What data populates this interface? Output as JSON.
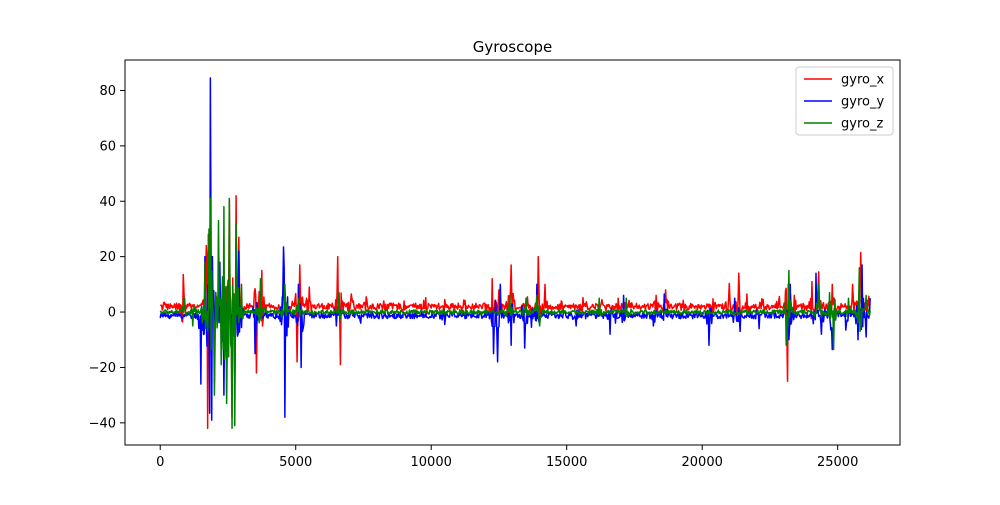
{
  "chart_data": {
    "type": "line",
    "title": "Gyroscope",
    "xlabel": "",
    "ylabel": "",
    "xlim": [
      -1300,
      27300
    ],
    "ylim": [
      -48,
      91
    ],
    "xticks": [
      0,
      5000,
      10000,
      15000,
      20000,
      25000
    ],
    "xtick_labels": [
      "0",
      "5000",
      "10000",
      "15000",
      "20000",
      "25000"
    ],
    "yticks": [
      -40,
      -20,
      0,
      20,
      40,
      60,
      80
    ],
    "ytick_labels": [
      "−40",
      "−20",
      "0",
      "20",
      "40",
      "60",
      "80"
    ],
    "grid": false,
    "legend_position": "top-right",
    "x_range": [
      0,
      26200
    ],
    "series": [
      {
        "name": "gyro_x",
        "color": "#ff0000",
        "baseline": 2,
        "noise": 1.2,
        "peaks": [
          [
            150,
            3.5
          ],
          [
            850,
            13.5
          ],
          [
            1700,
            24
          ],
          [
            1780,
            28
          ],
          [
            1760,
            -42
          ],
          [
            2000,
            -25
          ],
          [
            2350,
            -20
          ],
          [
            2550,
            40
          ],
          [
            2800,
            42
          ],
          [
            2650,
            -38
          ],
          [
            2900,
            27
          ],
          [
            3750,
            15
          ],
          [
            3550,
            -22
          ],
          [
            4550,
            10
          ],
          [
            5150,
            17
          ],
          [
            5050,
            -18
          ],
          [
            5500,
            9
          ],
          [
            6550,
            20
          ],
          [
            6650,
            -19
          ],
          [
            7050,
            6.5
          ],
          [
            7600,
            5.5
          ],
          [
            8250,
            4
          ],
          [
            9000,
            4
          ],
          [
            9800,
            5.2
          ],
          [
            10500,
            4.5
          ],
          [
            11200,
            4.3
          ],
          [
            12250,
            12
          ],
          [
            12500,
            8
          ],
          [
            12950,
            17
          ],
          [
            13550,
            5.5
          ],
          [
            13950,
            20
          ],
          [
            14200,
            10
          ],
          [
            14800,
            4
          ],
          [
            15600,
            5.2
          ],
          [
            16300,
            4.5
          ],
          [
            16900,
            5
          ],
          [
            17300,
            4.2
          ],
          [
            18300,
            6
          ],
          [
            18650,
            8
          ],
          [
            19300,
            4.2
          ],
          [
            20400,
            4.8
          ],
          [
            21000,
            10.3
          ],
          [
            21350,
            14
          ],
          [
            21650,
            6.5
          ],
          [
            22200,
            4.8
          ],
          [
            22850,
            5.6
          ],
          [
            23150,
            16.5
          ],
          [
            23160,
            -25
          ],
          [
            23400,
            6
          ],
          [
            24050,
            11
          ],
          [
            24300,
            14.5
          ],
          [
            24800,
            10
          ],
          [
            25550,
            10
          ],
          [
            25850,
            21.5
          ],
          [
            26150,
            5.7
          ]
        ]
      },
      {
        "name": "gyro_y",
        "color": "#0000ff",
        "baseline": -1.2,
        "noise": 1.2,
        "peaks": [
          [
            1500,
            -26
          ],
          [
            1650,
            20
          ],
          [
            1850,
            84.5
          ],
          [
            1900,
            -39
          ],
          [
            2200,
            18
          ],
          [
            2350,
            -30
          ],
          [
            2750,
            -25
          ],
          [
            2900,
            22
          ],
          [
            3500,
            -15
          ],
          [
            4550,
            23.5
          ],
          [
            4600,
            -38
          ],
          [
            5100,
            10
          ],
          [
            5200,
            -20
          ],
          [
            6500,
            -5
          ],
          [
            6600,
            5
          ],
          [
            7400,
            -4
          ],
          [
            10500,
            -4.5
          ],
          [
            12300,
            -15
          ],
          [
            12450,
            -18
          ],
          [
            12550,
            10
          ],
          [
            12950,
            -12
          ],
          [
            13450,
            -13
          ],
          [
            13700,
            -5.5
          ],
          [
            13900,
            10
          ],
          [
            15350,
            -5
          ],
          [
            16600,
            -8
          ],
          [
            16800,
            -4
          ],
          [
            17100,
            6
          ],
          [
            18200,
            -5
          ],
          [
            18600,
            6.5
          ],
          [
            20250,
            -12
          ],
          [
            21200,
            5
          ],
          [
            21400,
            -7
          ],
          [
            22100,
            -6
          ],
          [
            23200,
            -10
          ],
          [
            23250,
            10
          ],
          [
            24200,
            14
          ],
          [
            24400,
            -8
          ],
          [
            24800,
            -13.5
          ],
          [
            25300,
            -6.5
          ],
          [
            25750,
            -10
          ],
          [
            25900,
            17
          ],
          [
            26050,
            -9
          ],
          [
            26200,
            5
          ]
        ]
      },
      {
        "name": "gyro_z",
        "color": "#008000",
        "baseline": 0,
        "noise": 0.8,
        "peaks": [
          [
            900,
            5
          ],
          [
            1200,
            -5
          ],
          [
            1650,
            18
          ],
          [
            1800,
            30
          ],
          [
            1850,
            41
          ],
          [
            2000,
            -30
          ],
          [
            2150,
            33
          ],
          [
            2250,
            -19
          ],
          [
            2350,
            38
          ],
          [
            2450,
            -33
          ],
          [
            2550,
            41
          ],
          [
            2650,
            -42
          ],
          [
            2800,
            32
          ],
          [
            2750,
            -41
          ],
          [
            3000,
            10
          ],
          [
            3700,
            12
          ],
          [
            4600,
            10
          ],
          [
            5100,
            5
          ],
          [
            6600,
            7
          ],
          [
            12900,
            6
          ],
          [
            13500,
            5
          ],
          [
            13900,
            6
          ],
          [
            14000,
            -5
          ],
          [
            16200,
            5
          ],
          [
            17200,
            5
          ],
          [
            23100,
            -12
          ],
          [
            23200,
            15
          ],
          [
            24300,
            10
          ],
          [
            24700,
            7
          ],
          [
            24850,
            -13.5
          ],
          [
            25400,
            5
          ],
          [
            25800,
            16
          ],
          [
            26050,
            6
          ]
        ]
      }
    ]
  }
}
